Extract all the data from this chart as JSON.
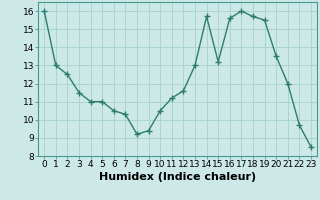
{
  "x": [
    0,
    1,
    2,
    3,
    4,
    5,
    6,
    7,
    8,
    9,
    10,
    11,
    12,
    13,
    14,
    15,
    16,
    17,
    18,
    19,
    20,
    21,
    22,
    23
  ],
  "y": [
    16,
    13,
    12.5,
    11.5,
    11,
    11,
    10.5,
    10.3,
    9.2,
    9.4,
    10.5,
    11.2,
    11.6,
    13,
    15.7,
    13.2,
    15.6,
    16,
    15.7,
    15.5,
    13.5,
    12,
    9.7,
    8.5
  ],
  "line_color": "#2d7d6f",
  "marker_color": "#2d7d6f",
  "bg_color": "#cce9e7",
  "grid_color": "#a8d4d0",
  "xlabel": "Humidex (Indice chaleur)",
  "ylim": [
    8,
    16.5
  ],
  "xlim": [
    -0.5,
    23.5
  ],
  "yticks": [
    8,
    9,
    10,
    11,
    12,
    13,
    14,
    15,
    16
  ],
  "xticks": [
    0,
    1,
    2,
    3,
    4,
    5,
    6,
    7,
    8,
    9,
    10,
    11,
    12,
    13,
    14,
    15,
    16,
    17,
    18,
    19,
    20,
    21,
    22,
    23
  ],
  "tick_label_fontsize": 6.5,
  "xlabel_fontsize": 8,
  "linewidth": 1.0,
  "markersize": 2.5
}
